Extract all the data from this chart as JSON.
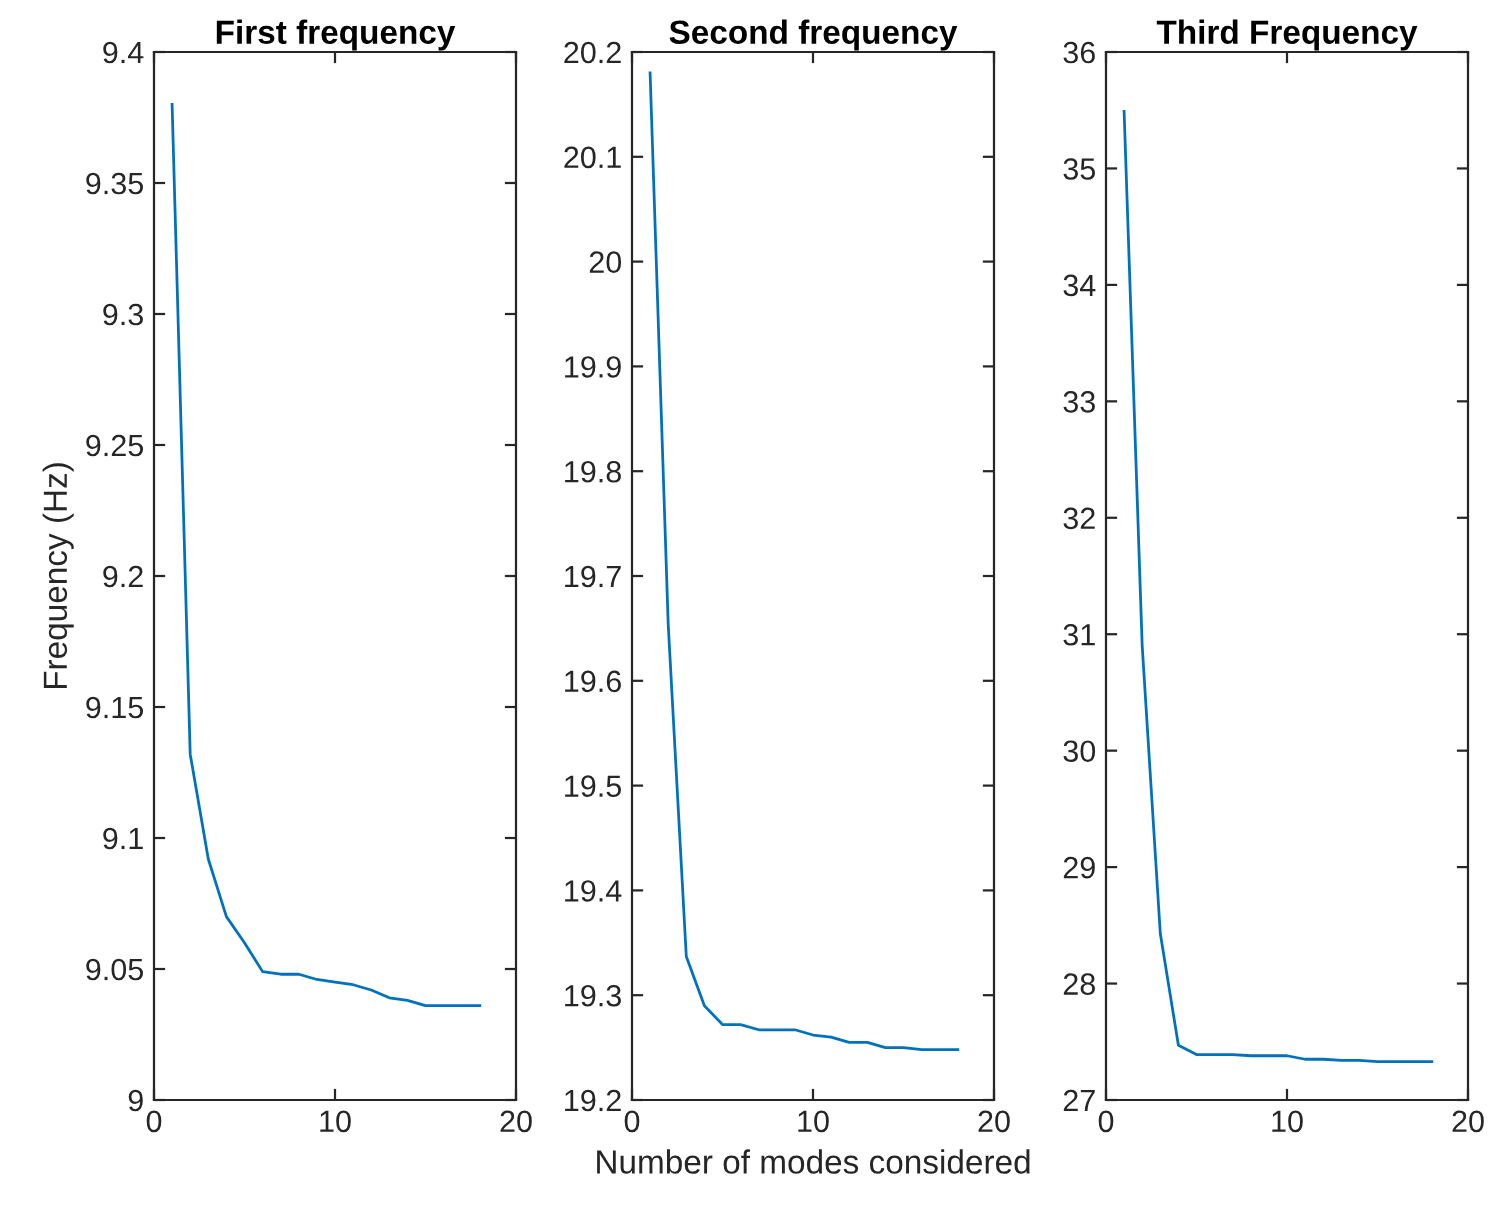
{
  "chart_data": [
    {
      "type": "line",
      "title": "First frequency",
      "ylabel": "Frequency (Hz)",
      "x": [
        1,
        2,
        3,
        4,
        5,
        6,
        7,
        8,
        9,
        10,
        11,
        12,
        13,
        14,
        15,
        16,
        17,
        18
      ],
      "series": [
        {
          "color": "#0072bd",
          "values": [
            9.38,
            9.132,
            9.092,
            9.07,
            9.06,
            9.049,
            9.048,
            9.048,
            9.046,
            9.045,
            9.044,
            9.042,
            9.039,
            9.038,
            9.036,
            9.036,
            9.036,
            9.036
          ]
        }
      ],
      "xlim": [
        0,
        20
      ],
      "xticks": [
        0,
        10,
        20
      ],
      "ylim": [
        9,
        9.4
      ],
      "yticks": [
        9,
        9.05,
        9.1,
        9.15,
        9.2,
        9.25,
        9.3,
        9.35,
        9.4
      ],
      "grid": false,
      "legend": false
    },
    {
      "type": "line",
      "title": "Second frequency",
      "xlabel": "Number of modes considered",
      "x": [
        1,
        2,
        3,
        4,
        5,
        6,
        7,
        8,
        9,
        10,
        11,
        12,
        13,
        14,
        15,
        16,
        17,
        18
      ],
      "series": [
        {
          "color": "#0072bd",
          "values": [
            20.18,
            19.654,
            19.337,
            19.29,
            19.272,
            19.272,
            19.267,
            19.267,
            19.267,
            19.262,
            19.26,
            19.255,
            19.255,
            19.25,
            19.25,
            19.248,
            19.248,
            19.248
          ]
        }
      ],
      "xlim": [
        0,
        20
      ],
      "xticks": [
        0,
        10,
        20
      ],
      "ylim": [
        19.2,
        20.2
      ],
      "yticks": [
        19.2,
        19.3,
        19.4,
        19.5,
        19.6,
        19.7,
        19.8,
        19.9,
        20,
        20.1,
        20.2
      ],
      "grid": false,
      "legend": false
    },
    {
      "type": "line",
      "title": "Third Frequency",
      "x": [
        1,
        2,
        3,
        4,
        5,
        6,
        7,
        8,
        9,
        10,
        11,
        12,
        13,
        14,
        15,
        16,
        17,
        18
      ],
      "series": [
        {
          "color": "#0072bd",
          "values": [
            35.49,
            30.9,
            28.43,
            27.47,
            27.39,
            27.39,
            27.39,
            27.38,
            27.38,
            27.38,
            27.35,
            27.35,
            27.34,
            27.34,
            27.33,
            27.33,
            27.33,
            27.33
          ]
        }
      ],
      "xlim": [
        0,
        20
      ],
      "xticks": [
        0,
        10,
        20
      ],
      "ylim": [
        27,
        36
      ],
      "yticks": [
        27,
        28,
        29,
        30,
        31,
        32,
        33,
        34,
        35,
        36
      ],
      "grid": false,
      "legend": false
    }
  ]
}
